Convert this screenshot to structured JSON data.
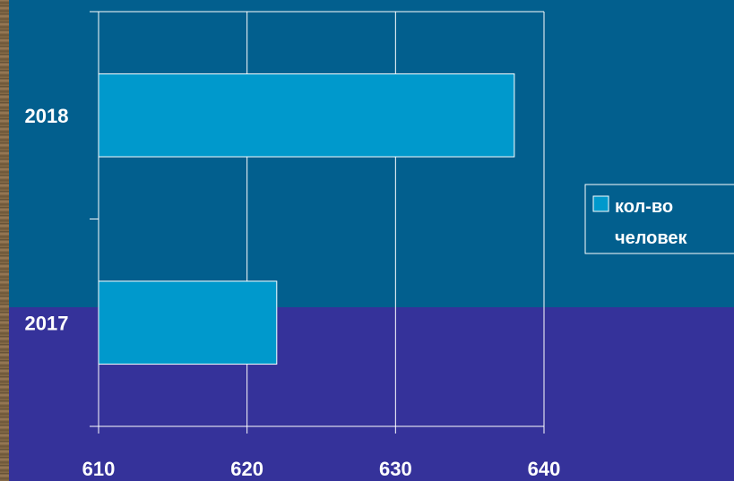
{
  "chart_data": {
    "type": "bar",
    "orientation": "horizontal",
    "categories": [
      "2018",
      "2017"
    ],
    "series": [
      {
        "name": "кол-во человек",
        "values": [
          638,
          622
        ]
      }
    ],
    "xlim": [
      610,
      640
    ],
    "xticks": [
      "610",
      "620",
      "630",
      "640"
    ],
    "grid": true,
    "legend_position": "right",
    "legend_lines": [
      "кол-во",
      "человек"
    ],
    "bar_color": "#0099cc",
    "background_top": "#025f8e",
    "background_bottom": "#35329a"
  }
}
